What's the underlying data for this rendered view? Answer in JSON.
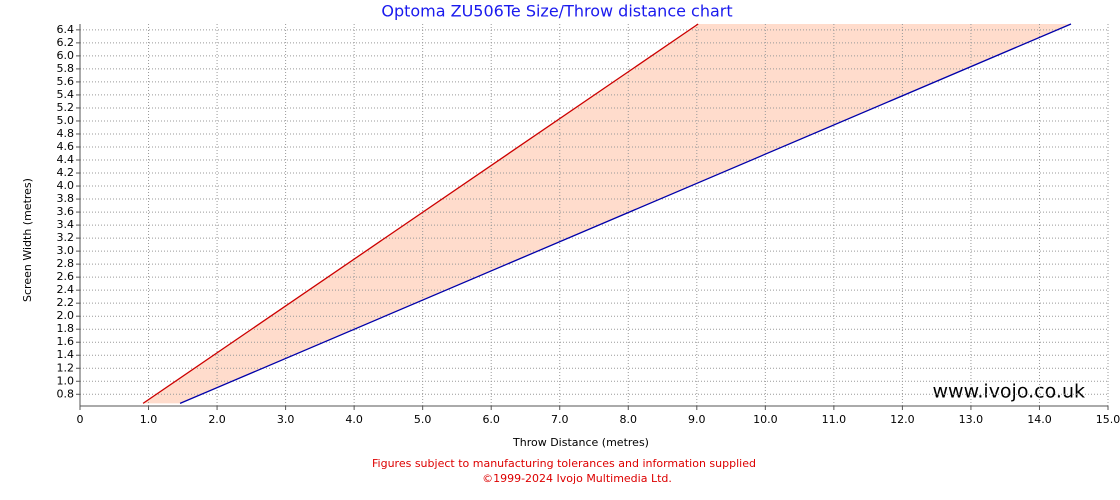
{
  "chart_data": {
    "type": "line",
    "title": "Optoma ZU506Te Size/Throw distance chart",
    "x_label": "Throw Distance (metres)",
    "y_label": "Screen Width (metres)",
    "watermark": "www.ivojo.co.uk",
    "footnotes": [
      "Figures subject to manufacturing tolerances and information supplied",
      "©1999-2024 Ivojo Multimedia Ltd."
    ],
    "series": [
      {
        "color": "#cc0000",
        "x": [
          0.92,
          9.02
        ],
        "values": [
          0.66,
          6.49
        ]
      },
      {
        "color": "#0000aa",
        "x": [
          1.46,
          14.46
        ],
        "values": [
          0.66,
          6.49
        ]
      }
    ],
    "fill_between": "#ffdccc",
    "xlim": [
      0,
      15
    ],
    "ylim": [
      0.62,
      6.49
    ],
    "xticks": [
      0,
      {
        "value": 1,
        "label": "1.0"
      },
      {
        "value": 2,
        "label": "2.0"
      },
      {
        "value": 3,
        "label": "3.0"
      },
      {
        "value": 4,
        "label": "4.0"
      },
      {
        "value": 5,
        "label": "5.0"
      },
      {
        "value": 6,
        "label": "6.0"
      },
      {
        "value": 7,
        "label": "7.0"
      },
      {
        "value": 8,
        "label": "8.0"
      },
      {
        "value": 9,
        "label": "9.0"
      },
      {
        "value": 10,
        "label": "10.0"
      },
      {
        "value": 11,
        "label": "11.0"
      },
      {
        "value": 12,
        "label": "12.0"
      },
      {
        "value": 13,
        "label": "13.0"
      },
      {
        "value": 14,
        "label": "14.0"
      },
      {
        "value": 15,
        "label": "15.0"
      }
    ],
    "yticks": [
      0.8,
      {
        "value": 1,
        "label": "1.0"
      },
      1.2,
      1.4,
      1.6,
      1.8,
      {
        "value": 2,
        "label": "2.0"
      },
      2.2,
      2.4,
      2.6,
      2.8,
      {
        "value": 3,
        "label": "3.0"
      },
      3.2,
      3.4,
      3.6,
      3.8,
      {
        "value": 4,
        "label": "4.0"
      },
      4.2,
      4.4,
      4.6,
      4.8,
      {
        "value": 5,
        "label": "5.0"
      },
      5.2,
      5.4,
      5.6,
      5.8,
      {
        "value": 6,
        "label": "6.0"
      },
      6.2,
      6.4
    ],
    "grid": true
  }
}
